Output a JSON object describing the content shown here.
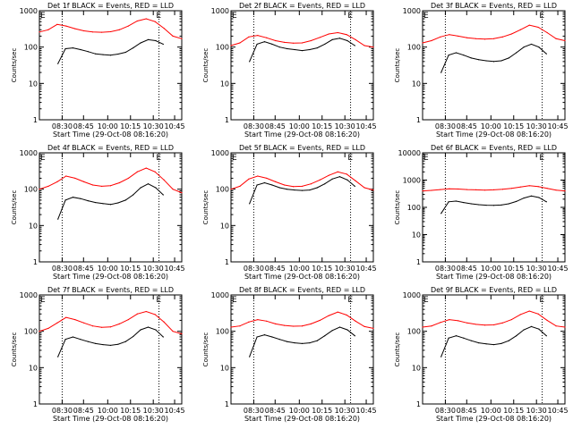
{
  "chart_data": [
    {
      "type": "line",
      "title": "Det 1f BLACK = Events, RED = LLD",
      "xlabel": "Start Time (29-Oct-08 08:16:20)",
      "ylabel": "Counts/sec",
      "yscale": "log",
      "ylim": [
        1,
        1000
      ],
      "yticks": [
        "1",
        "10",
        "100",
        "1000"
      ],
      "xticks": [
        "08:30",
        "08:45",
        "10:00",
        "10:15",
        "10:30",
        "10:45"
      ],
      "marker_e": "E",
      "series": [
        {
          "name": "BLACK = Events",
          "color": "#000000",
          "values": [
            35,
            90,
            95,
            85,
            75,
            65,
            62,
            60,
            64,
            72,
            95,
            130,
            160,
            150,
            120
          ]
        },
        {
          "name": "RED = LLD",
          "color": "#ff0000",
          "values": [
            260,
            300,
            420,
            380,
            320,
            280,
            260,
            255,
            265,
            300,
            380,
            520,
            600,
            500,
            330,
            200,
            170
          ]
        }
      ]
    },
    {
      "type": "line",
      "title": "Det 2f BLACK = Events, RED = LLD",
      "xlabel": "Start Time (29-Oct-08 08:16:20)",
      "ylabel": "Counts/sec",
      "yscale": "log",
      "ylim": [
        1,
        1000
      ],
      "yticks": [
        "1",
        "10",
        "100",
        "1000"
      ],
      "xticks": [
        "08:30",
        "08:45",
        "10:00",
        "10:15",
        "10:30",
        "10:45"
      ],
      "marker_e": "E",
      "series": [
        {
          "name": "BLACK = Events",
          "color": "#000000",
          "values": [
            40,
            120,
            140,
            120,
            100,
            90,
            85,
            80,
            85,
            95,
            120,
            160,
            175,
            150,
            110
          ]
        },
        {
          "name": "RED = LLD",
          "color": "#ff0000",
          "values": [
            110,
            130,
            190,
            210,
            180,
            150,
            135,
            128,
            130,
            150,
            185,
            230,
            250,
            220,
            160,
            110,
            100
          ]
        }
      ]
    },
    {
      "type": "line",
      "title": "Det 3f BLACK = Events, RED = LLD",
      "xlabel": "Start Time (29-Oct-08 08:16:20)",
      "ylabel": "Counts/sec",
      "yscale": "log",
      "ylim": [
        1,
        1000
      ],
      "yticks": [
        "1",
        "10",
        "100",
        "1000"
      ],
      "xticks": [
        "08:30",
        "08:45",
        "10:00",
        "10:15",
        "10:30",
        "10:45"
      ],
      "marker_e": "E",
      "series": [
        {
          "name": "BLACK = Events",
          "color": "#000000",
          "values": [
            20,
            60,
            70,
            60,
            50,
            45,
            42,
            40,
            42,
            50,
            70,
            100,
            120,
            100,
            65
          ]
        },
        {
          "name": "RED = LLD",
          "color": "#ff0000",
          "values": [
            130,
            150,
            190,
            220,
            200,
            180,
            170,
            165,
            170,
            190,
            230,
            300,
            400,
            350,
            250,
            170,
            150
          ]
        }
      ]
    },
    {
      "type": "line",
      "title": "Det 4f BLACK = Events, RED = LLD",
      "xlabel": "Start Time (29-Oct-08 08:16:20)",
      "ylabel": "Counts/sec",
      "yscale": "log",
      "ylim": [
        1,
        1000
      ],
      "yticks": [
        "1",
        "10",
        "100",
        "1000"
      ],
      "xticks": [
        "08:30",
        "08:45",
        "10:00",
        "10:15",
        "10:30",
        "10:45"
      ],
      "marker_e": "E",
      "series": [
        {
          "name": "BLACK = Events",
          "color": "#000000",
          "values": [
            15,
            50,
            60,
            55,
            48,
            43,
            40,
            38,
            42,
            50,
            70,
            110,
            140,
            110,
            70
          ]
        },
        {
          "name": "RED = LLD",
          "color": "#ff0000",
          "values": [
            100,
            120,
            160,
            230,
            200,
            160,
            130,
            120,
            125,
            150,
            200,
            300,
            380,
            300,
            180,
            100,
            80
          ]
        }
      ]
    },
    {
      "type": "line",
      "title": "Det 5f BLACK = Events, RED = LLD",
      "xlabel": "Start Time (29-Oct-08 08:16:20)",
      "ylabel": "Counts/sec",
      "yscale": "log",
      "ylim": [
        1,
        1000
      ],
      "yticks": [
        "1",
        "10",
        "100",
        "1000"
      ],
      "xticks": [
        "08:30",
        "08:45",
        "10:00",
        "10:15",
        "10:30",
        "10:45"
      ],
      "marker_e": "E",
      "series": [
        {
          "name": "BLACK = Events",
          "color": "#000000",
          "values": [
            40,
            130,
            150,
            130,
            110,
            100,
            95,
            92,
            95,
            110,
            140,
            190,
            220,
            180,
            120
          ]
        },
        {
          "name": "RED = LLD",
          "color": "#ff0000",
          "values": [
            100,
            120,
            190,
            230,
            200,
            160,
            130,
            118,
            120,
            140,
            180,
            240,
            300,
            260,
            170,
            110,
            95
          ]
        }
      ]
    },
    {
      "type": "line",
      "title": "Det 6f BLACK = Events, RED = LLD",
      "xlabel": "Start Time (29-Oct-08 08:16:20)",
      "ylabel": "Counts/sec",
      "yscale": "log",
      "ylim": [
        1,
        10000
      ],
      "yticks": [
        "1",
        "10",
        "100",
        "1000",
        "10000"
      ],
      "xticks": [
        "08:30",
        "08:45",
        "10:00",
        "10:15",
        "10:30",
        "10:45"
      ],
      "marker_e": "E",
      "series": [
        {
          "name": "BLACK = Events",
          "color": "#000000",
          "values": [
            60,
            160,
            170,
            150,
            135,
            125,
            120,
            118,
            122,
            135,
            165,
            220,
            260,
            230,
            160
          ]
        },
        {
          "name": "RED = LLD",
          "color": "#ff0000",
          "values": [
            400,
            420,
            450,
            480,
            470,
            450,
            440,
            430,
            440,
            460,
            500,
            560,
            620,
            580,
            500,
            430,
            400
          ]
        }
      ]
    },
    {
      "type": "line",
      "title": "Det 7f BLACK = Events, RED = LLD",
      "xlabel": "Start Time (29-Oct-08 08:16:20)",
      "ylabel": "Counts/sec",
      "yscale": "log",
      "ylim": [
        1,
        1000
      ],
      "yticks": [
        "1",
        "10",
        "100",
        "1000"
      ],
      "xticks": [
        "08:30",
        "08:45",
        "10:00",
        "10:15",
        "10:30",
        "10:45"
      ],
      "marker_e": "E",
      "series": [
        {
          "name": "BLACK = Events",
          "color": "#000000",
          "values": [
            20,
            60,
            70,
            60,
            52,
            46,
            43,
            41,
            44,
            52,
            72,
            110,
            130,
            110,
            70
          ]
        },
        {
          "name": "RED = LLD",
          "color": "#ff0000",
          "values": [
            100,
            120,
            170,
            240,
            210,
            170,
            140,
            128,
            132,
            160,
            210,
            300,
            350,
            290,
            180,
            100,
            85
          ]
        }
      ]
    },
    {
      "type": "line",
      "title": "Det 8f BLACK = Events, RED = LLD",
      "xlabel": "Start Time (29-Oct-08 08:16:20)",
      "ylabel": "Counts/sec",
      "yscale": "log",
      "ylim": [
        1,
        1000
      ],
      "yticks": [
        "1",
        "10",
        "100",
        "1000"
      ],
      "xticks": [
        "08:30",
        "08:45",
        "10:00",
        "10:15",
        "10:30",
        "10:45"
      ],
      "marker_e": "E",
      "series": [
        {
          "name": "BLACK = Events",
          "color": "#000000",
          "values": [
            20,
            70,
            80,
            70,
            60,
            52,
            48,
            46,
            48,
            55,
            75,
            105,
            130,
            110,
            75
          ]
        },
        {
          "name": "RED = LLD",
          "color": "#ff0000",
          "values": [
            130,
            140,
            180,
            210,
            190,
            160,
            145,
            138,
            140,
            160,
            200,
            270,
            340,
            280,
            190,
            135,
            120
          ]
        }
      ]
    },
    {
      "type": "line",
      "title": "Det 9f BLACK = Events, RED = LLD",
      "xlabel": "Start Time (29-Oct-08 08:16:20)",
      "ylabel": "Counts/sec",
      "yscale": "log",
      "ylim": [
        1,
        1000
      ],
      "yticks": [
        "1",
        "10",
        "100",
        "1000"
      ],
      "xticks": [
        "08:30",
        "08:45",
        "10:00",
        "10:15",
        "10:30",
        "10:45"
      ],
      "marker_e": "E",
      "series": [
        {
          "name": "BLACK = Events",
          "color": "#000000",
          "values": [
            20,
            65,
            75,
            65,
            55,
            48,
            45,
            43,
            46,
            55,
            75,
            110,
            135,
            115,
            75
          ]
        },
        {
          "name": "RED = LLD",
          "color": "#ff0000",
          "values": [
            130,
            140,
            175,
            210,
            195,
            170,
            155,
            148,
            150,
            170,
            210,
            290,
            360,
            300,
            200,
            140,
            130
          ]
        }
      ]
    }
  ]
}
